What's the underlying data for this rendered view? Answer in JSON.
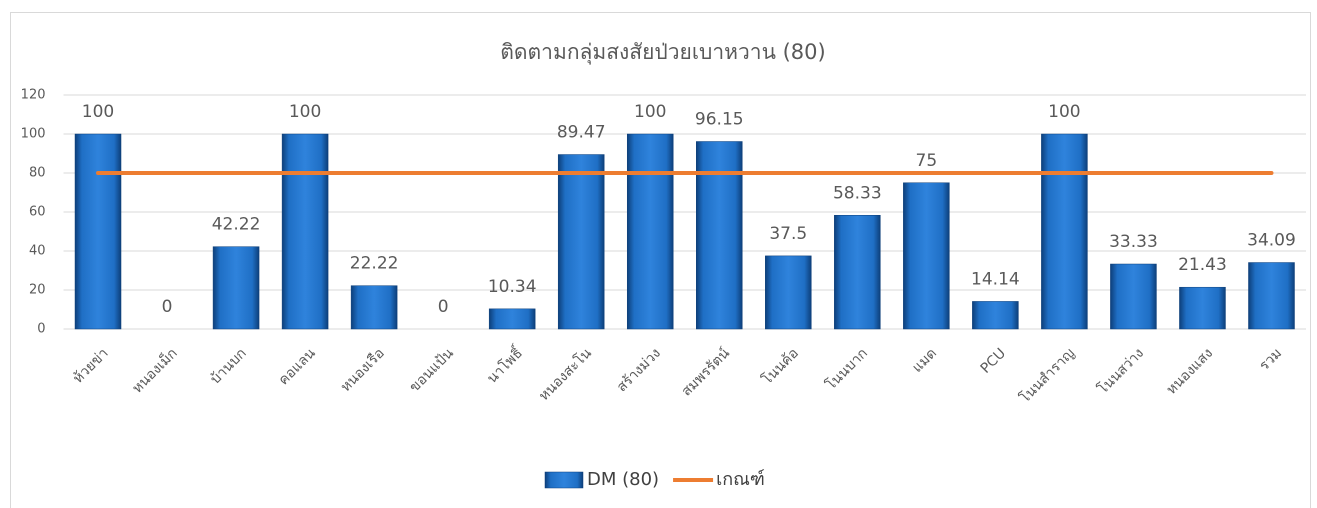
{
  "chart_data": {
    "type": "bar",
    "title": "ติดตามกลุ่มสงสัยป่วยเบาหวาน (80)",
    "categories": [
      "ห้วยข่า",
      "หนองเม็ก",
      "บ้านบก",
      "คอแลน",
      "หนองเรือ",
      "ขอนแป้น",
      "นาโพธิ์",
      "หนองสะโน",
      "สร้างม่วง",
      "สมพรรัตน์",
      "โนนค้อ",
      "โนนบาก",
      "แมด",
      "PCU",
      "โนนสำราญ",
      "โนนสว่าง",
      "หนองแสง",
      "รวม"
    ],
    "series": [
      {
        "name": "DM (80)",
        "type": "bar",
        "color": "#1f6fc5",
        "values": [
          100,
          0,
          42.22,
          100,
          22.22,
          0,
          10.34,
          89.47,
          100,
          96.15,
          37.5,
          58.33,
          75,
          14.14,
          100,
          33.33,
          21.43,
          34.09
        ]
      },
      {
        "name": "เกณฑ์",
        "type": "line",
        "color": "#ed7d31",
        "values": [
          80,
          80,
          80,
          80,
          80,
          80,
          80,
          80,
          80,
          80,
          80,
          80,
          80,
          80,
          80,
          80,
          80,
          80
        ]
      }
    ],
    "ylim": [
      0,
      120
    ],
    "yticks": [
      0,
      20,
      40,
      60,
      80,
      100,
      120
    ],
    "grid": true,
    "legend": "bottom"
  }
}
